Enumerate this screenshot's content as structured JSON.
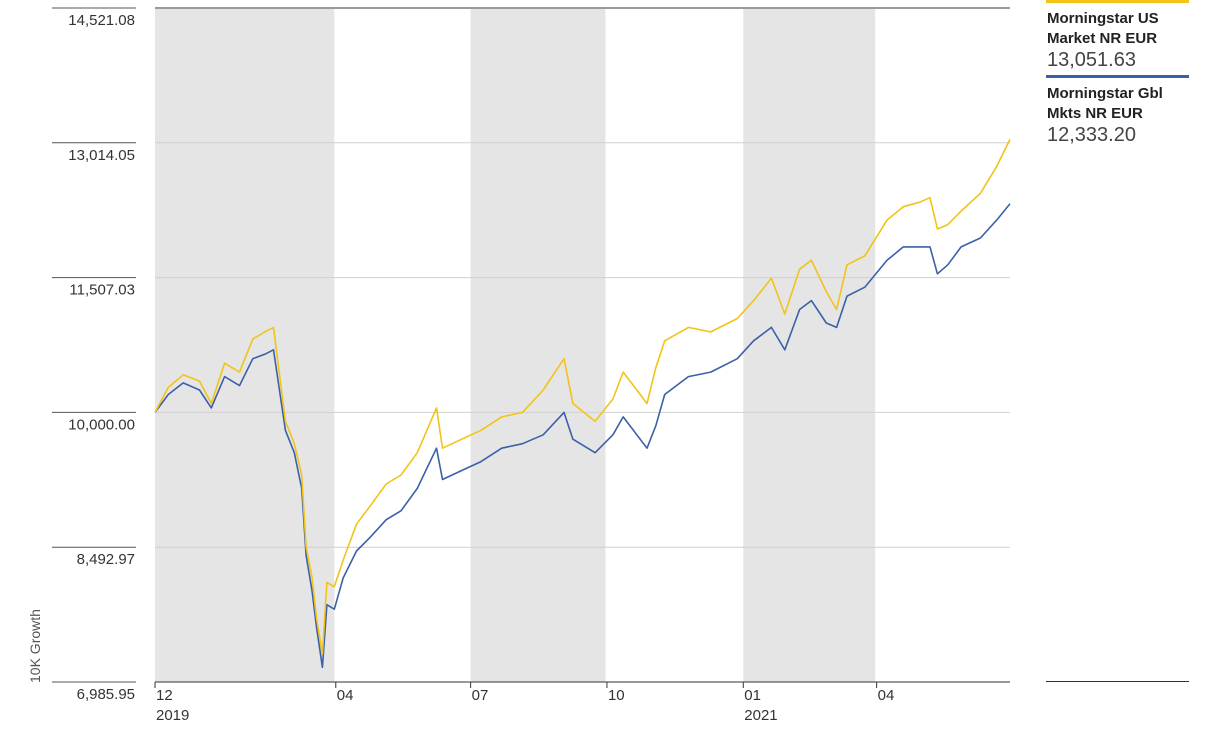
{
  "chart_data": {
    "type": "line",
    "ylabel": "10K Growth",
    "xlabel": "",
    "y_ticks": [
      "14,521.08",
      "13,014.05",
      "11,507.03",
      "10,000.00",
      "8,492.97",
      "6,985.95"
    ],
    "ylim": [
      6985.95,
      14521.08
    ],
    "x_ticks": [
      {
        "label": "12",
        "year": "2019",
        "date": "2019-12-01"
      },
      {
        "label": "04",
        "year": "",
        "date": "2020-04-01"
      },
      {
        "label": "07",
        "year": "",
        "date": "2020-07-01"
      },
      {
        "label": "10",
        "year": "",
        "date": "2020-10-01"
      },
      {
        "label": "01",
        "year": "2021",
        "date": "2021-01-01"
      },
      {
        "label": "04",
        "year": "",
        "date": "2021-04-01"
      }
    ],
    "xlim": [
      "2019-12-01",
      "2021-06-30"
    ],
    "shaded_periods": [
      [
        "2019-12-01",
        "2020-03-31"
      ],
      [
        "2020-07-01",
        "2020-09-30"
      ],
      [
        "2021-01-01",
        "2021-03-31"
      ]
    ],
    "grid": true,
    "legend_position": "right",
    "series": [
      {
        "name": "Morningstar US Market NR EUR",
        "value_label": "13,051.63",
        "color": "#f2c318",
        "points": [
          [
            "2019-12-01",
            10000
          ],
          [
            "2019-12-10",
            10280
          ],
          [
            "2019-12-20",
            10420
          ],
          [
            "2019-12-31",
            10350
          ],
          [
            "2020-01-08",
            10100
          ],
          [
            "2020-01-17",
            10550
          ],
          [
            "2020-01-27",
            10450
          ],
          [
            "2020-02-05",
            10820
          ],
          [
            "2020-02-13",
            10900
          ],
          [
            "2020-02-19",
            10950
          ],
          [
            "2020-02-27",
            9900
          ],
          [
            "2020-03-04",
            9650
          ],
          [
            "2020-03-09",
            9300
          ],
          [
            "2020-03-12",
            8500
          ],
          [
            "2020-03-16",
            8150
          ],
          [
            "2020-03-19",
            7700
          ],
          [
            "2020-03-23",
            7300
          ],
          [
            "2020-03-26",
            8100
          ],
          [
            "2020-03-31",
            8050
          ],
          [
            "2020-04-06",
            8350
          ],
          [
            "2020-04-15",
            8750
          ],
          [
            "2020-04-24",
            8950
          ],
          [
            "2020-05-05",
            9200
          ],
          [
            "2020-05-15",
            9300
          ],
          [
            "2020-05-26",
            9550
          ],
          [
            "2020-06-08",
            10050
          ],
          [
            "2020-06-12",
            9600
          ],
          [
            "2020-06-25",
            9700
          ],
          [
            "2020-07-08",
            9800
          ],
          [
            "2020-07-22",
            9950
          ],
          [
            "2020-08-05",
            10000
          ],
          [
            "2020-08-19",
            10250
          ],
          [
            "2020-09-02",
            10600
          ],
          [
            "2020-09-08",
            10100
          ],
          [
            "2020-09-23",
            9900
          ],
          [
            "2020-10-05",
            10150
          ],
          [
            "2020-10-12",
            10450
          ],
          [
            "2020-10-28",
            10100
          ],
          [
            "2020-11-03",
            10500
          ],
          [
            "2020-11-09",
            10800
          ],
          [
            "2020-11-25",
            10950
          ],
          [
            "2020-12-10",
            10900
          ],
          [
            "2020-12-28",
            11050
          ],
          [
            "2021-01-08",
            11250
          ],
          [
            "2021-01-20",
            11500
          ],
          [
            "2021-01-29",
            11100
          ],
          [
            "2021-02-08",
            11600
          ],
          [
            "2021-02-16",
            11700
          ],
          [
            "2021-02-26",
            11350
          ],
          [
            "2021-03-05",
            11150
          ],
          [
            "2021-03-12",
            11650
          ],
          [
            "2021-03-24",
            11750
          ],
          [
            "2021-04-08",
            12150
          ],
          [
            "2021-04-19",
            12300
          ],
          [
            "2021-04-30",
            12350
          ],
          [
            "2021-05-07",
            12400
          ],
          [
            "2021-05-12",
            12050
          ],
          [
            "2021-05-19",
            12100
          ],
          [
            "2021-05-28",
            12250
          ],
          [
            "2021-06-10",
            12450
          ],
          [
            "2021-06-21",
            12750
          ],
          [
            "2021-06-30",
            13051.63
          ]
        ]
      },
      {
        "name": "Morningstar Gbl Mkts NR EUR",
        "value_label": "12,333.20",
        "color": "#3a61a8",
        "points": [
          [
            "2019-12-01",
            10000
          ],
          [
            "2019-12-10",
            10200
          ],
          [
            "2019-12-20",
            10330
          ],
          [
            "2019-12-31",
            10250
          ],
          [
            "2020-01-08",
            10050
          ],
          [
            "2020-01-17",
            10400
          ],
          [
            "2020-01-27",
            10300
          ],
          [
            "2020-02-05",
            10600
          ],
          [
            "2020-02-13",
            10650
          ],
          [
            "2020-02-19",
            10700
          ],
          [
            "2020-02-27",
            9800
          ],
          [
            "2020-03-04",
            9550
          ],
          [
            "2020-03-09",
            9150
          ],
          [
            "2020-03-12",
            8400
          ],
          [
            "2020-03-16",
            8000
          ],
          [
            "2020-03-19",
            7600
          ],
          [
            "2020-03-23",
            7150
          ],
          [
            "2020-03-26",
            7850
          ],
          [
            "2020-03-31",
            7800
          ],
          [
            "2020-04-06",
            8150
          ],
          [
            "2020-04-15",
            8450
          ],
          [
            "2020-04-24",
            8600
          ],
          [
            "2020-05-05",
            8800
          ],
          [
            "2020-05-15",
            8900
          ],
          [
            "2020-05-26",
            9150
          ],
          [
            "2020-06-08",
            9600
          ],
          [
            "2020-06-12",
            9250
          ],
          [
            "2020-06-25",
            9350
          ],
          [
            "2020-07-08",
            9450
          ],
          [
            "2020-07-22",
            9600
          ],
          [
            "2020-08-05",
            9650
          ],
          [
            "2020-08-19",
            9750
          ],
          [
            "2020-09-02",
            10000
          ],
          [
            "2020-09-08",
            9700
          ],
          [
            "2020-09-23",
            9550
          ],
          [
            "2020-10-05",
            9750
          ],
          [
            "2020-10-12",
            9950
          ],
          [
            "2020-10-28",
            9600
          ],
          [
            "2020-11-03",
            9850
          ],
          [
            "2020-11-09",
            10200
          ],
          [
            "2020-11-25",
            10400
          ],
          [
            "2020-12-10",
            10450
          ],
          [
            "2020-12-28",
            10600
          ],
          [
            "2021-01-08",
            10800
          ],
          [
            "2021-01-20",
            10950
          ],
          [
            "2021-01-29",
            10700
          ],
          [
            "2021-02-08",
            11150
          ],
          [
            "2021-02-16",
            11250
          ],
          [
            "2021-02-26",
            11000
          ],
          [
            "2021-03-05",
            10950
          ],
          [
            "2021-03-12",
            11300
          ],
          [
            "2021-03-24",
            11400
          ],
          [
            "2021-04-08",
            11700
          ],
          [
            "2021-04-19",
            11850
          ],
          [
            "2021-04-30",
            11850
          ],
          [
            "2021-05-07",
            11850
          ],
          [
            "2021-05-12",
            11550
          ],
          [
            "2021-05-19",
            11650
          ],
          [
            "2021-05-28",
            11850
          ],
          [
            "2021-06-10",
            11950
          ],
          [
            "2021-06-21",
            12150
          ],
          [
            "2021-06-30",
            12333.2
          ]
        ]
      }
    ]
  }
}
